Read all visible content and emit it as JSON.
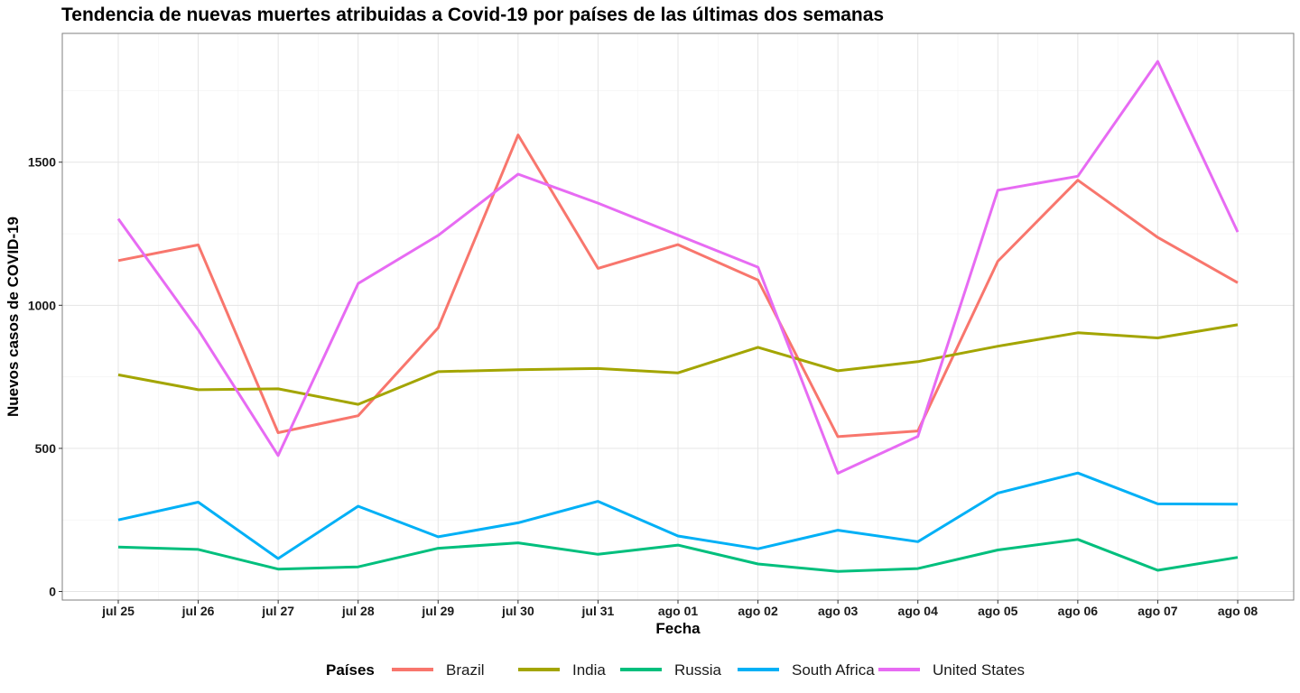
{
  "chart_data": {
    "type": "line",
    "title": "Tendencia de nuevas muertes atribuidas a Covid-19 por países de las últimas dos semanas",
    "xlabel": "Fecha",
    "ylabel": "Nuevos casos de COVID-19",
    "categories": [
      "jul 25",
      "jul 26",
      "jul 27",
      "jul 28",
      "jul 29",
      "jul 30",
      "jul 31",
      "ago 01",
      "ago 02",
      "ago 03",
      "ago 04",
      "ago 05",
      "ago 06",
      "ago 07",
      "ago 08"
    ],
    "ylim": [
      -30,
      1950
    ],
    "yticks": [
      0,
      500,
      1000,
      1500
    ],
    "grid": true,
    "legend": {
      "title": "Países",
      "position": "bottom"
    },
    "series": [
      {
        "name": "Brazil",
        "color": "#F8766D",
        "values": [
          1156,
          1211,
          555,
          614,
          921,
          1595,
          1129,
          1212,
          1088,
          541,
          561,
          1154,
          1437,
          1237,
          1079
        ]
      },
      {
        "name": "India",
        "color": "#A3A500",
        "values": [
          757,
          705,
          708,
          654,
          768,
          775,
          779,
          764,
          853,
          771,
          803,
          857,
          904,
          886,
          932
        ]
      },
      {
        "name": "Russia",
        "color": "#00BF7D",
        "values": [
          155,
          147,
          78,
          86,
          151,
          170,
          130,
          162,
          96,
          70,
          80,
          145,
          182,
          74,
          119
        ]
      },
      {
        "name": "South Africa",
        "color": "#00B0F6",
        "values": [
          250,
          312,
          115,
          298,
          191,
          240,
          315,
          194,
          149,
          214,
          174,
          344,
          414,
          306,
          305
        ]
      },
      {
        "name": "United States",
        "color": "#E76BF3",
        "values": [
          1302,
          914,
          475,
          1076,
          1244,
          1458,
          1357,
          1245,
          1133,
          413,
          542,
          1402,
          1451,
          1852,
          1256
        ]
      }
    ]
  }
}
